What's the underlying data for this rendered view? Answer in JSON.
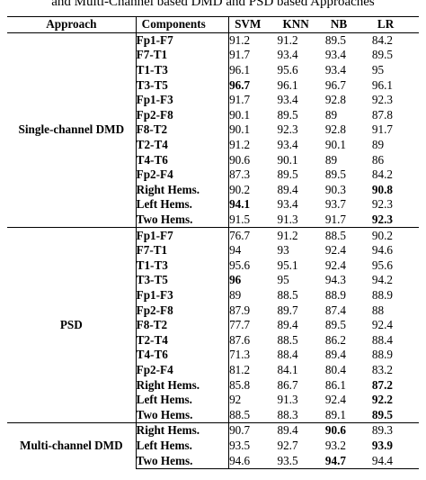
{
  "caption": "and Multi-Channel based DMD and PSD based Approaches",
  "headers": [
    "Approach",
    "Components",
    "SVM",
    "KNN",
    "NB",
    "LR"
  ],
  "groups": [
    {
      "approach": "Single-channel DMD",
      "rows": [
        {
          "component": "Fp1-F7",
          "values": [
            "91.2",
            "91.2",
            "89.5",
            "84.2"
          ],
          "bold": []
        },
        {
          "component": "F7-T1",
          "values": [
            "91.7",
            "93.4",
            "93.4",
            "89.5"
          ],
          "bold": []
        },
        {
          "component": "T1-T3",
          "values": [
            "96.1",
            "95.6",
            "93.4",
            "95"
          ],
          "bold": []
        },
        {
          "component": "T3-T5",
          "values": [
            "96.7",
            "96.1",
            "96.7",
            "96.1"
          ],
          "bold": [
            0
          ]
        },
        {
          "component": "Fp1-F3",
          "values": [
            "91.7",
            "93.4",
            "92.8",
            "92.3"
          ],
          "bold": []
        },
        {
          "component": "Fp2-F8",
          "values": [
            "90.1",
            "89.5",
            "89",
            "87.8"
          ],
          "bold": []
        },
        {
          "component": "F8-T2",
          "values": [
            "90.1",
            "92.3",
            "92.8",
            "91.7"
          ],
          "bold": []
        },
        {
          "component": "T2-T4",
          "values": [
            "91.2",
            "93.4",
            "90.1",
            "89"
          ],
          "bold": []
        },
        {
          "component": "T4-T6",
          "values": [
            "90.6",
            "90.1",
            "89",
            "86"
          ],
          "bold": []
        },
        {
          "component": "Fp2-F4",
          "values": [
            "87.3",
            "89.5",
            "89.5",
            "84.2"
          ],
          "bold": []
        },
        {
          "component": "Right Hems.",
          "values": [
            "90.2",
            "89.4",
            "90.3",
            "90.8"
          ],
          "bold": [
            3
          ]
        },
        {
          "component": "Left Hems.",
          "values": [
            "94.1",
            "93.4",
            "93.7",
            "92.3"
          ],
          "bold": [
            0
          ]
        },
        {
          "component": "Two Hems.",
          "values": [
            "91.5",
            "91.3",
            "91.7",
            "92.3"
          ],
          "bold": [
            3
          ]
        }
      ]
    },
    {
      "approach": "PSD",
      "rows": [
        {
          "component": "Fp1-F7",
          "values": [
            "76.7",
            "91.2",
            "88.5",
            "90.2"
          ],
          "bold": []
        },
        {
          "component": "F7-T1",
          "values": [
            "94",
            "93",
            "92.4",
            "94.6"
          ],
          "bold": []
        },
        {
          "component": "T1-T3",
          "values": [
            "95.6",
            "95.1",
            "92.4",
            "95.6"
          ],
          "bold": []
        },
        {
          "component": "T3-T5",
          "values": [
            "96",
            "95",
            "94.3",
            "94.2"
          ],
          "bold": [
            0
          ]
        },
        {
          "component": "Fp1-F3",
          "values": [
            "89",
            "88.5",
            "88.9",
            "88.9"
          ],
          "bold": []
        },
        {
          "component": "Fp2-F8",
          "values": [
            "87.9",
            "89.7",
            "87.4",
            "88"
          ],
          "bold": []
        },
        {
          "component": "F8-T2",
          "values": [
            "77.7",
            "89.4",
            "89.5",
            "92.4"
          ],
          "bold": []
        },
        {
          "component": "T2-T4",
          "values": [
            "87.6",
            "88.5",
            "86.2",
            "88.4"
          ],
          "bold": []
        },
        {
          "component": "T4-T6",
          "values": [
            "71.3",
            "88.4",
            "89.4",
            "88.9"
          ],
          "bold": []
        },
        {
          "component": "Fp2-F4",
          "values": [
            "81.2",
            "84.1",
            "80.4",
            "83.2"
          ],
          "bold": []
        },
        {
          "component": "Right Hems.",
          "values": [
            "85.8",
            "86.7",
            "86.1",
            "87.2"
          ],
          "bold": [
            3
          ]
        },
        {
          "component": "Left Hems.",
          "values": [
            "92",
            "91.3",
            "92.4",
            "92.2"
          ],
          "bold": [
            3
          ]
        },
        {
          "component": "Two Hems.",
          "values": [
            "88.5",
            "88.3",
            "89.1",
            "89.5"
          ],
          "bold": [
            3
          ]
        }
      ]
    },
    {
      "approach": "Multi-channel DMD",
      "rows": [
        {
          "component": "Right Hems.",
          "values": [
            "90.7",
            "89.4",
            "90.6",
            "89.3"
          ],
          "bold": [
            2
          ]
        },
        {
          "component": "Left Hems.",
          "values": [
            "93.5",
            "92.7",
            "93.2",
            "93.9"
          ],
          "bold": [
            3
          ]
        },
        {
          "component": "Two Hems.",
          "values": [
            "94.6",
            "93.5",
            "94.7",
            "94.4"
          ],
          "bold": [
            2
          ]
        }
      ]
    }
  ]
}
